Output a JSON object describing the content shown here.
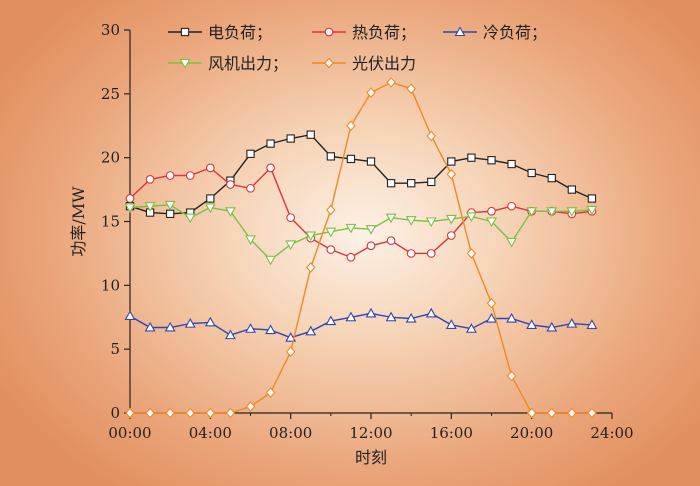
{
  "chart_data": {
    "type": "line",
    "xlabel": "时刻",
    "ylabel": "功率/MW",
    "xlim": [
      0,
      24
    ],
    "ylim": [
      0,
      30
    ],
    "x_ticks": [
      "00:00",
      "04:00",
      "08:00",
      "12:00",
      "16:00",
      "20:00",
      "24:00"
    ],
    "y_ticks": [
      "0",
      "5",
      "10",
      "15",
      "20",
      "25",
      "30"
    ],
    "grid": false,
    "legend_position": "top",
    "x": [
      0,
      1,
      2,
      3,
      4,
      5,
      6,
      7,
      8,
      9,
      10,
      11,
      12,
      13,
      14,
      15,
      16,
      17,
      18,
      19,
      20,
      21,
      22,
      23
    ],
    "series": [
      {
        "name": "电负荷；",
        "color": "#222222",
        "marker": "square",
        "values": [
          16.2,
          15.7,
          15.6,
          15.7,
          16.8,
          18.2,
          20.3,
          21.1,
          21.5,
          21.8,
          20.1,
          19.9,
          19.7,
          18.0,
          18.0,
          18.1,
          19.7,
          20.0,
          19.8,
          19.5,
          18.8,
          18.4,
          17.5,
          16.8
        ]
      },
      {
        "name": "热负荷；",
        "color": "#d9353a",
        "marker": "circle",
        "values": [
          16.8,
          18.3,
          18.6,
          18.6,
          19.2,
          17.9,
          17.6,
          19.2,
          15.3,
          13.7,
          12.8,
          12.2,
          13.1,
          13.5,
          12.5,
          12.5,
          13.9,
          15.7,
          15.8,
          16.2,
          15.8,
          15.8,
          15.6,
          15.8
        ]
      },
      {
        "name": "冷负荷；",
        "color": "#2f47b0",
        "marker": "triangle",
        "values": [
          7.6,
          6.7,
          6.7,
          7.0,
          7.1,
          6.1,
          6.6,
          6.5,
          5.9,
          6.4,
          7.2,
          7.5,
          7.8,
          7.5,
          7.4,
          7.8,
          6.9,
          6.6,
          7.4,
          7.4,
          6.9,
          6.7,
          7.0,
          6.9
        ]
      },
      {
        "name": "风机出力；",
        "color": "#7ac143",
        "marker": "triangle-down",
        "values": [
          16.1,
          16.2,
          16.3,
          15.3,
          16.1,
          15.8,
          13.6,
          12.0,
          13.2,
          13.9,
          14.2,
          14.5,
          14.4,
          15.3,
          15.1,
          15.0,
          15.2,
          15.4,
          15.0,
          13.4,
          15.8,
          15.8,
          15.8,
          15.9
        ]
      },
      {
        "name": "光伏出力",
        "color": "#f08a24",
        "marker": "diamond",
        "values": [
          0,
          0,
          0,
          0,
          0,
          0,
          0.5,
          1.6,
          4.8,
          11.4,
          15.9,
          22.5,
          25.1,
          25.9,
          25.4,
          21.7,
          18.7,
          12.5,
          8.6,
          2.9,
          0,
          0,
          0,
          0
        ]
      }
    ]
  }
}
